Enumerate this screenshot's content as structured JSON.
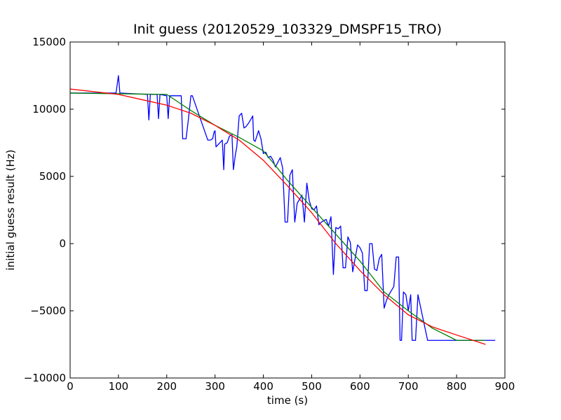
{
  "chart_data": {
    "type": "line",
    "title": "Init guess (20120529_103329_DMSPF15_TRO)",
    "xlabel": "time (s)",
    "ylabel": "initial guess result (Hz)",
    "xlim": [
      0,
      900
    ],
    "ylim": [
      -10000,
      15000
    ],
    "xticks": [
      0,
      100,
      200,
      300,
      400,
      500,
      600,
      700,
      800,
      900
    ],
    "yticks": [
      -10000,
      -5000,
      0,
      5000,
      10000,
      15000
    ],
    "grid": false,
    "legend": "none",
    "series": [
      {
        "color": "#0000ff",
        "x": [
          0,
          50,
          95,
          100,
          103,
          160,
          163,
          166,
          180,
          183,
          186,
          200,
          203,
          206,
          210,
          230,
          233,
          240,
          245,
          250,
          253,
          285,
          290,
          295,
          298,
          300,
          302,
          315,
          318,
          320,
          325,
          330,
          335,
          338,
          342,
          345,
          350,
          355,
          360,
          364,
          370,
          375,
          378,
          380,
          383,
          390,
          395,
          400,
          405,
          410,
          415,
          420,
          425,
          435,
          440,
          445,
          450,
          455,
          460,
          465,
          470,
          475,
          480,
          485,
          490,
          495,
          500,
          505,
          510,
          515,
          520,
          525,
          530,
          535,
          540,
          545,
          550,
          555,
          560,
          565,
          570,
          575,
          580,
          585,
          590,
          595,
          600,
          605,
          610,
          615,
          620,
          625,
          630,
          635,
          640,
          645,
          650,
          655,
          660,
          665,
          670,
          675,
          680,
          683,
          686,
          690,
          695,
          700,
          705,
          708,
          715,
          720,
          740,
          760,
          800,
          860,
          880
        ],
        "y": [
          11200,
          11200,
          11200,
          12500,
          11200,
          11100,
          9200,
          11100,
          11100,
          9300,
          11100,
          11000,
          9300,
          11000,
          11000,
          11000,
          7800,
          7800,
          9300,
          11000,
          11000,
          7700,
          7700,
          7800,
          8300,
          8400,
          7200,
          7700,
          5500,
          7400,
          7500,
          8000,
          8100,
          5500,
          6600,
          7200,
          9500,
          9700,
          8600,
          8700,
          9000,
          9300,
          9500,
          7700,
          7600,
          8400,
          7800,
          6700,
          6800,
          6400,
          6500,
          6200,
          5700,
          6400,
          5600,
          1600,
          1600,
          5100,
          5500,
          1600,
          3000,
          3300,
          3600,
          1600,
          4500,
          3200,
          2600,
          2500,
          2800,
          1400,
          1600,
          1700,
          1800,
          1300,
          2000,
          -2300,
          1200,
          1100,
          1300,
          -1800,
          -1800,
          500,
          100,
          -2100,
          -1100,
          -100,
          -300,
          -700,
          -3500,
          -3500,
          0,
          0,
          -1900,
          -2000,
          -1100,
          -800,
          -4800,
          -4200,
          -3800,
          -3500,
          -3200,
          -1000,
          -1000,
          -7200,
          -7200,
          -3600,
          -3800,
          -5000,
          -3800,
          -7200,
          -7200,
          -3800,
          -7200,
          -7200,
          -7200,
          -7200,
          -7200
        ]
      },
      {
        "color": "#008000",
        "x": [
          0,
          200,
          250,
          300,
          350,
          400,
          450,
          500,
          550,
          600,
          650,
          700,
          750,
          800,
          860
        ],
        "y": [
          11200,
          11100,
          9900,
          8800,
          7900,
          6900,
          4700,
          2700,
          700,
          -1300,
          -3600,
          -5000,
          -6300,
          -7200,
          -7200
        ]
      },
      {
        "color": "#ff0000",
        "x": [
          0,
          50,
          100,
          150,
          200,
          250,
          300,
          350,
          400,
          450,
          500,
          550,
          600,
          650,
          700,
          750,
          800,
          860
        ],
        "y": [
          11500,
          11300,
          11100,
          10700,
          10300,
          9700,
          8800,
          7700,
          6200,
          4300,
          2300,
          0,
          -2000,
          -3800,
          -5300,
          -6200,
          -6800,
          -7500
        ]
      }
    ]
  }
}
